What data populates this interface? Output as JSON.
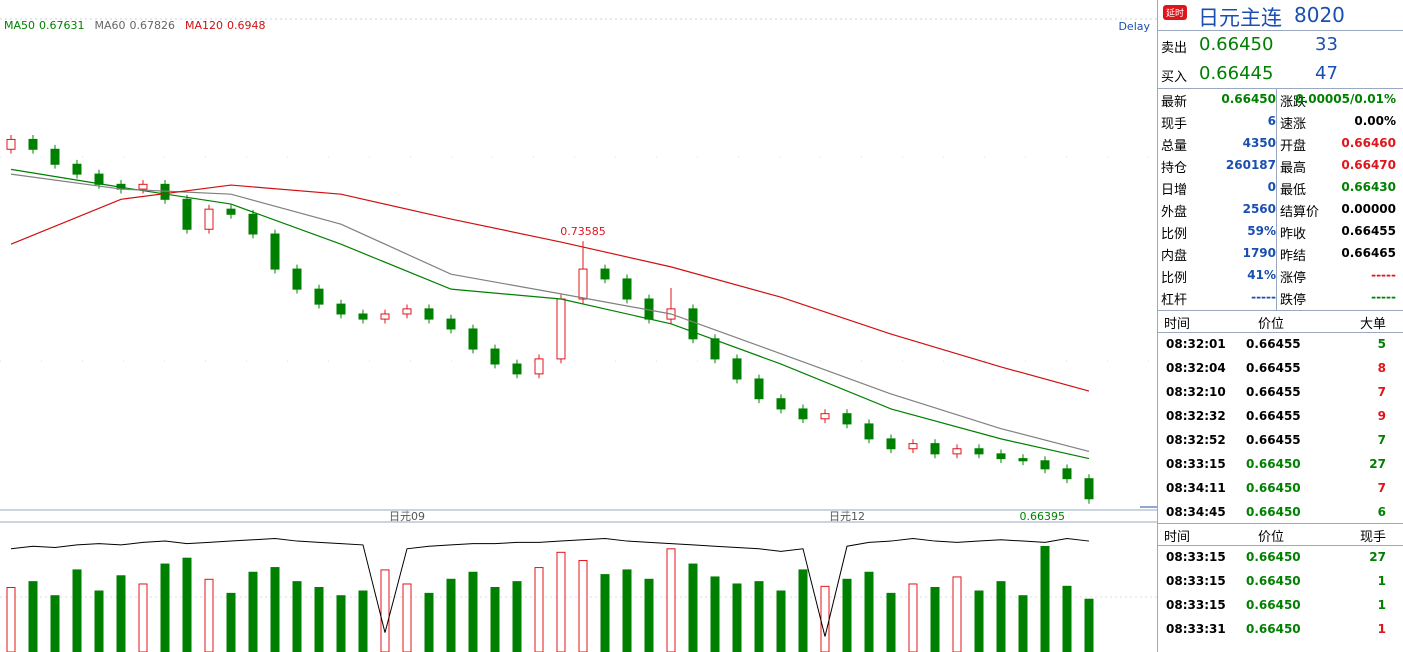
{
  "toolbar": {
    "delay": "Delay"
  },
  "chart_data": [
    {
      "type": "candlestick",
      "ylim": [
        0.6625,
        0.7964
      ],
      "up_color": "#e0141b",
      "down_color": "#008000",
      "categories": [
        null,
        null,
        null,
        null,
        null,
        null,
        null,
        null,
        null,
        null,
        null,
        null,
        null,
        null,
        null,
        null,
        null,
        null,
        "日元09",
        null,
        null,
        null,
        null,
        null,
        null,
        null,
        null,
        null,
        null,
        null,
        null,
        null,
        null,
        null,
        null,
        null,
        null,
        null,
        "日元12",
        null,
        null,
        null,
        null,
        null,
        null,
        null,
        null,
        null,
        null,
        null
      ],
      "candles": [
        [
          0.761,
          0.7649,
          0.7598,
          0.7637
        ],
        [
          0.7637,
          0.7649,
          0.7598,
          0.761
        ],
        [
          0.761,
          0.7622,
          0.7557,
          0.7569
        ],
        [
          0.7569,
          0.7581,
          0.753,
          0.7542
        ],
        [
          0.7542,
          0.7554,
          0.7502,
          0.7514
        ],
        [
          0.7514,
          0.7526,
          0.7489,
          0.7501
        ],
        [
          0.7501,
          0.7526,
          0.7489,
          0.7514
        ],
        [
          0.7514,
          0.7526,
          0.7461,
          0.7473
        ],
        [
          0.7473,
          0.7485,
          0.7379,
          0.7391
        ],
        [
          0.7391,
          0.7458,
          0.7379,
          0.7446
        ],
        [
          0.7446,
          0.7458,
          0.742,
          0.7432
        ],
        [
          0.7432,
          0.7444,
          0.7366,
          0.7378
        ],
        [
          0.7378,
          0.739,
          0.727,
          0.7282
        ],
        [
          0.7282,
          0.7294,
          0.7215,
          0.7227
        ],
        [
          0.7227,
          0.7239,
          0.7174,
          0.7186
        ],
        [
          0.7186,
          0.7198,
          0.7147,
          0.7159
        ],
        [
          0.7159,
          0.7171,
          0.7133,
          0.7145
        ],
        [
          0.7145,
          0.7171,
          0.7133,
          0.7159
        ],
        [
          0.7159,
          0.7185,
          0.7147,
          0.7173
        ],
        [
          0.7173,
          0.7185,
          0.7133,
          0.7145
        ],
        [
          0.7145,
          0.7157,
          0.7106,
          0.7118
        ],
        [
          0.7118,
          0.713,
          0.7051,
          0.7063
        ],
        [
          0.7063,
          0.7075,
          0.701,
          0.7022
        ],
        [
          0.7022,
          0.7034,
          0.6983,
          0.6995
        ],
        [
          0.6995,
          0.7048,
          0.6983,
          0.7036
        ],
        [
          0.7036,
          0.7212,
          0.7024,
          0.72
        ],
        [
          0.72,
          0.73585,
          0.7188,
          0.7282
        ],
        [
          0.7282,
          0.7294,
          0.7243,
          0.7255
        ],
        [
          0.7255,
          0.7267,
          0.7188,
          0.72
        ],
        [
          0.72,
          0.7212,
          0.7133,
          0.7145
        ],
        [
          0.7145,
          0.723,
          0.7133,
          0.7173
        ],
        [
          0.7173,
          0.7185,
          0.7079,
          0.7091
        ],
        [
          0.7091,
          0.7103,
          0.7024,
          0.7036
        ],
        [
          0.7036,
          0.7048,
          0.6969,
          0.6981
        ],
        [
          0.6981,
          0.6993,
          0.6915,
          0.6927
        ],
        [
          0.6927,
          0.6939,
          0.6887,
          0.6899
        ],
        [
          0.6899,
          0.6911,
          0.686,
          0.6872
        ],
        [
          0.6872,
          0.6898,
          0.686,
          0.6886
        ],
        [
          0.6886,
          0.6898,
          0.6846,
          0.6858
        ],
        [
          0.6858,
          0.687,
          0.6805,
          0.6817
        ],
        [
          0.6817,
          0.6829,
          0.6778,
          0.679
        ],
        [
          0.679,
          0.6816,
          0.6778,
          0.6804
        ],
        [
          0.6804,
          0.6816,
          0.6764,
          0.6776
        ],
        [
          0.6776,
          0.6802,
          0.6764,
          0.679
        ],
        [
          0.679,
          0.6802,
          0.6764,
          0.6776
        ],
        [
          0.6776,
          0.6788,
          0.6751,
          0.6763
        ],
        [
          0.6763,
          0.6775,
          0.6745,
          0.6757
        ],
        [
          0.6757,
          0.6769,
          0.6723,
          0.6735
        ],
        [
          0.6735,
          0.6747,
          0.6696,
          0.6708
        ],
        [
          0.6708,
          0.672,
          0.66395,
          0.6653
        ]
      ],
      "high_index": 26,
      "low_index": 49,
      "series": [
        {
          "name": "MA50",
          "color": "#008000",
          "x": [
            0,
            5,
            10,
            15,
            20,
            25,
            30,
            35,
            40,
            45,
            49
          ],
          "values": [
            0.7555,
            0.7506,
            0.746,
            0.735,
            0.7227,
            0.72,
            0.7132,
            0.7022,
            0.6899,
            0.6817,
            0.67631
          ]
        },
        {
          "name": "MA60",
          "color": "#808080",
          "x": [
            0,
            5,
            10,
            15,
            20,
            25,
            30,
            35,
            40,
            45,
            49
          ],
          "values": [
            0.7542,
            0.7501,
            0.7487,
            0.7405,
            0.7268,
            0.7214,
            0.7159,
            0.705,
            0.694,
            0.6845,
            0.67826
          ]
        },
        {
          "name": "MA120",
          "color": "#d01010",
          "x": [
            0,
            5,
            10,
            15,
            20,
            25,
            30,
            35,
            40,
            45,
            49
          ],
          "values": [
            0.735,
            0.7473,
            0.7512,
            0.7487,
            0.7419,
            0.7356,
            0.7288,
            0.7205,
            0.7104,
            0.7014,
            0.6948
          ]
        }
      ]
    },
    {
      "type": "volume",
      "ylim": [
        0,
        110
      ],
      "values": [
        55,
        60,
        48,
        70,
        52,
        65,
        58,
        75,
        80,
        62,
        50,
        68,
        72,
        60,
        55,
        48,
        52,
        70,
        58,
        50,
        62,
        68,
        55,
        60,
        72,
        85,
        78,
        66,
        70,
        62,
        88,
        75,
        64,
        58,
        60,
        52,
        70,
        56,
        62,
        68,
        50,
        58,
        55,
        64,
        52,
        60,
        48,
        90,
        56,
        45
      ],
      "line": {
        "color": "#000000",
        "y2lim": [
          0,
          100
        ],
        "values": [
          80,
          82,
          81,
          83,
          84,
          83,
          85,
          86,
          84,
          85,
          86,
          87,
          88,
          86,
          85,
          84,
          83,
          15,
          80,
          82,
          83,
          84,
          84,
          85,
          85,
          86,
          87,
          88,
          86,
          85,
          84,
          83,
          82,
          81,
          80,
          78,
          80,
          12,
          82,
          85,
          86,
          88,
          86,
          85,
          86,
          87,
          86,
          85,
          88,
          86
        ]
      }
    }
  ],
  "panel": {
    "badge": "延时",
    "title": "日元主连",
    "code": "8020",
    "ask": {
      "label": "卖出",
      "price": "0.66450",
      "size": "33"
    },
    "bid": {
      "label": "买入",
      "price": "0.66445",
      "size": "47"
    },
    "stats": {
      "left": [
        {
          "label": "最新",
          "value": "0.66450",
          "color": "#008000"
        },
        {
          "label": "现手",
          "value": "6",
          "color": "#1a4fb0"
        },
        {
          "label": "总量",
          "value": "4350",
          "color": "#1a4fb0"
        },
        {
          "label": "持仓",
          "value": "260187",
          "color": "#1a4fb0"
        },
        {
          "label": "日增",
          "value": "0",
          "color": "#1a4fb0"
        },
        {
          "label": "外盘",
          "value": "2560",
          "color": "#1a4fb0"
        },
        {
          "label": "比例",
          "value": "59%",
          "color": "#1a4fb0"
        },
        {
          "label": "内盘",
          "value": "1790",
          "color": "#1a4fb0"
        },
        {
          "label": "比例",
          "value": "41%",
          "color": "#1a4fb0"
        },
        {
          "label": "杠杆",
          "value": "-----",
          "color": "#1a4fb0"
        }
      ],
      "right": [
        {
          "label": "涨跌",
          "value": "0.00005/0.01%",
          "color": "#008000"
        },
        {
          "label": "速涨",
          "value": "0.00%",
          "color": "#000000"
        },
        {
          "label": "开盘",
          "value": "0.66460",
          "color": "#e0141b"
        },
        {
          "label": "最高",
          "value": "0.66470",
          "color": "#e0141b"
        },
        {
          "label": "最低",
          "value": "0.66430",
          "color": "#008000"
        },
        {
          "label": "结算价",
          "value": "0.00000",
          "color": "#000000"
        },
        {
          "label": "昨收",
          "value": "0.66455",
          "color": "#000000"
        },
        {
          "label": "昨结",
          "value": "0.66465",
          "color": "#000000"
        },
        {
          "label": "涨停",
          "value": "-----",
          "color": "#e0141b"
        },
        {
          "label": "跌停",
          "value": "-----",
          "color": "#008000"
        }
      ]
    },
    "big_trades": {
      "headers": [
        "时间",
        "价位",
        "大单"
      ],
      "rows": [
        {
          "time": "08:32:01",
          "price": "0.66455",
          "volume": "5",
          "price_color": "#000000",
          "volume_color": "#008000"
        },
        {
          "time": "08:32:04",
          "price": "0.66455",
          "volume": "8",
          "price_color": "#000000",
          "volume_color": "#e0141b"
        },
        {
          "time": "08:32:10",
          "price": "0.66455",
          "volume": "7",
          "price_color": "#000000",
          "volume_color": "#e0141b"
        },
        {
          "time": "08:32:32",
          "price": "0.66455",
          "volume": "9",
          "price_color": "#000000",
          "volume_color": "#e0141b"
        },
        {
          "time": "08:32:52",
          "price": "0.66455",
          "volume": "7",
          "price_color": "#000000",
          "volume_color": "#008000"
        },
        {
          "time": "08:33:15",
          "price": "0.66450",
          "volume": "27",
          "price_color": "#008000",
          "volume_color": "#008000"
        },
        {
          "time": "08:34:11",
          "price": "0.66450",
          "volume": "7",
          "price_color": "#008000",
          "volume_color": "#e0141b"
        },
        {
          "time": "08:34:45",
          "price": "0.66450",
          "volume": "6",
          "price_color": "#008000",
          "volume_color": "#008000"
        }
      ]
    },
    "ticks": {
      "headers": [
        "时间",
        "价位",
        "现手"
      ],
      "rows": [
        {
          "time": "08:33:15",
          "price": "0.66450",
          "volume": "27",
          "price_color": "#008000",
          "volume_color": "#008000"
        },
        {
          "time": "08:33:15",
          "price": "0.66450",
          "volume": "1",
          "price_color": "#008000",
          "volume_color": "#008000"
        },
        {
          "time": "08:33:15",
          "price": "0.66450",
          "volume": "1",
          "price_color": "#008000",
          "volume_color": "#008000"
        },
        {
          "time": "08:33:31",
          "price": "0.66450",
          "volume": "1",
          "price_color": "#008000",
          "volume_color": "#e0141b"
        }
      ]
    }
  }
}
